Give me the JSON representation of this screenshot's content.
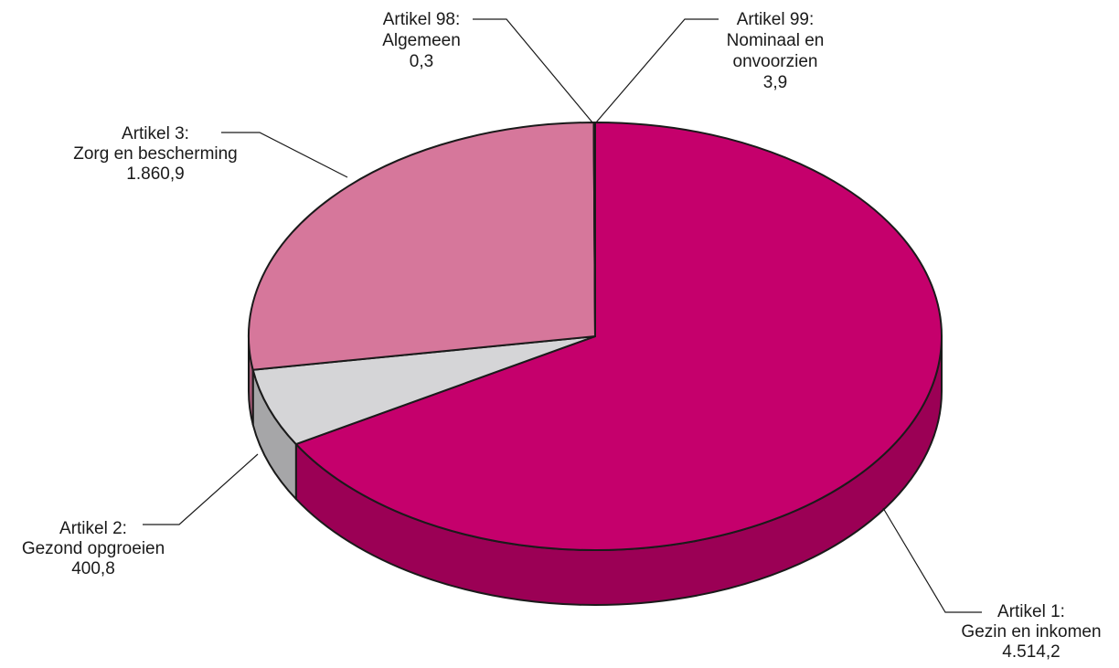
{
  "chart_data": {
    "type": "pie",
    "title": "",
    "slices": [
      {
        "label_line1": "Artikel 1:",
        "label_line2": "Gezin en inkomen",
        "label_line3": "",
        "value": 4514.2,
        "value_label": "4.514,2",
        "color": "#c5006c",
        "side_color": "#9b0055"
      },
      {
        "label_line1": "Artikel 2:",
        "label_line2": "Gezond opgroeien",
        "label_line3": "",
        "value": 400.8,
        "value_label": "400,8",
        "color": "#d5d5d7",
        "side_color": "#a6a6a8"
      },
      {
        "label_line1": "Artikel 3:",
        "label_line2": "Zorg en bescherming",
        "label_line3": "",
        "value": 1860.9,
        "value_label": "1.860,9",
        "color": "#d6779b",
        "side_color": "#a85a78"
      },
      {
        "label_line1": "Artikel 98:",
        "label_line2": "Algemeen",
        "label_line3": "",
        "value": 0.3,
        "value_label": "0,3",
        "color": "#e8e8e8",
        "side_color": "#bdbdbd"
      },
      {
        "label_line1": "Artikel 99:",
        "label_line2": "Nominaal en",
        "label_line3": "onvoorzien",
        "value": 3.9,
        "value_label": "3,9",
        "color": "#b0b0b0",
        "side_color": "#8c8c8c"
      }
    ]
  }
}
